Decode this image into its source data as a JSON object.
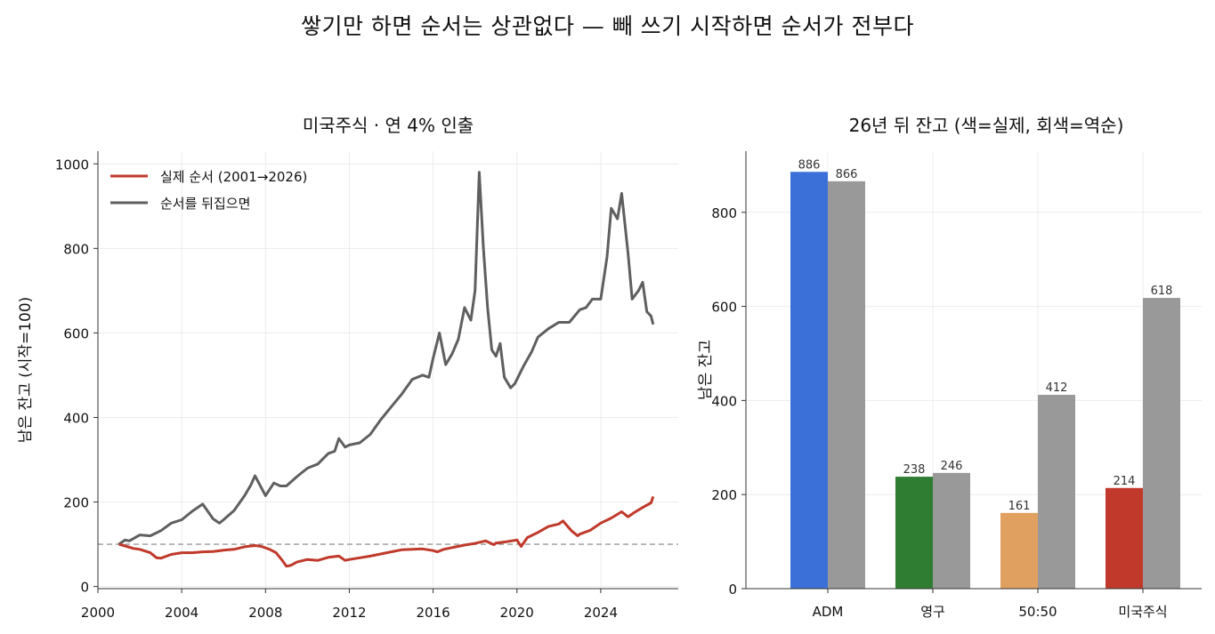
{
  "suptitle": "쌓기만 하면 순서는 상관없다 — 빼 쓰기 시작하면 순서가 전부다",
  "chart_data": [
    {
      "type": "line",
      "title": "미국주식 · 연 4% 인출",
      "xlabel": "",
      "ylabel": "남은 잔고 (시작=100)",
      "xlim": [
        2000,
        2027.7
      ],
      "ylim": [
        -5,
        1030
      ],
      "xticks": [
        "2000",
        "2004",
        "2008",
        "2012",
        "2016",
        "2020",
        "2024"
      ],
      "yticks": [
        "0",
        "200",
        "400",
        "600",
        "800",
        "1000"
      ],
      "reference_line": 100,
      "grid": true,
      "legend_position": "top-left",
      "colors": {
        "actual": "#c0392b",
        "reversed": "#5f5f5f",
        "reference": "#999999"
      },
      "series": [
        {
          "name": "실제 순서 (2001→2026)",
          "x": [
            2001.0,
            2001.3,
            2001.7,
            2002.0,
            2002.5,
            2002.8,
            2003.0,
            2003.5,
            2004.0,
            2004.5,
            2005.0,
            2005.5,
            2006.0,
            2006.5,
            2007.0,
            2007.5,
            2007.8,
            2008.2,
            2008.5,
            2008.8,
            2009.0,
            2009.2,
            2009.5,
            2010.0,
            2010.5,
            2011.0,
            2011.5,
            2011.8,
            2012.0,
            2012.5,
            2013.0,
            2013.5,
            2014.0,
            2014.5,
            2015.0,
            2015.5,
            2016.0,
            2016.2,
            2016.5,
            2017.0,
            2017.5,
            2018.0,
            2018.5,
            2018.9,
            2019.0,
            2019.5,
            2020.0,
            2020.2,
            2020.5,
            2021.0,
            2021.5,
            2022.0,
            2022.2,
            2022.6,
            2022.9,
            2023.0,
            2023.5,
            2024.0,
            2024.5,
            2025.0,
            2025.3,
            2025.6,
            2026.0,
            2026.4,
            2026.5
          ],
          "y": [
            100,
            96,
            90,
            88,
            80,
            68,
            67,
            76,
            80,
            80,
            82,
            83,
            86,
            88,
            94,
            97,
            95,
            88,
            80,
            62,
            48,
            50,
            58,
            64,
            62,
            69,
            72,
            62,
            64,
            68,
            72,
            77,
            82,
            87,
            88,
            89,
            85,
            82,
            88,
            93,
            98,
            102,
            108,
            99,
            103,
            106,
            110,
            95,
            116,
            128,
            142,
            148,
            155,
            132,
            120,
            124,
            133,
            150,
            162,
            177,
            165,
            175,
            187,
            198,
            213
          ]
        },
        {
          "name": "순서를 뒤집으면",
          "x": [
            2001.0,
            2001.3,
            2001.5,
            2002.0,
            2002.5,
            2003.0,
            2003.5,
            2004.0,
            2004.5,
            2005.0,
            2005.5,
            2005.8,
            2006.0,
            2006.5,
            2007.0,
            2007.3,
            2007.5,
            2008.0,
            2008.4,
            2008.7,
            2009.0,
            2009.5,
            2010.0,
            2010.5,
            2011.0,
            2011.3,
            2011.5,
            2011.8,
            2012.0,
            2012.5,
            2013.0,
            2013.5,
            2014.0,
            2014.5,
            2015.0,
            2015.5,
            2015.8,
            2016.0,
            2016.3,
            2016.6,
            2016.9,
            2017.2,
            2017.5,
            2017.8,
            2018.0,
            2018.2,
            2018.4,
            2018.6,
            2018.8,
            2019.0,
            2019.2,
            2019.4,
            2019.7,
            2019.9,
            2020.1,
            2020.3,
            2020.7,
            2021.0,
            2021.5,
            2022.0,
            2022.5,
            2023.0,
            2023.3,
            2023.6,
            2024.0,
            2024.3,
            2024.5,
            2024.8,
            2025.0,
            2025.3,
            2025.5,
            2025.8,
            2026.0,
            2026.2,
            2026.4,
            2026.5
          ],
          "y": [
            100,
            110,
            108,
            122,
            120,
            132,
            150,
            158,
            178,
            195,
            160,
            150,
            158,
            180,
            215,
            240,
            262,
            215,
            245,
            238,
            238,
            260,
            280,
            290,
            315,
            320,
            350,
            330,
            335,
            340,
            360,
            395,
            425,
            455,
            490,
            500,
            495,
            540,
            600,
            525,
            550,
            585,
            660,
            630,
            700,
            980,
            800,
            660,
            560,
            545,
            575,
            495,
            470,
            480,
            500,
            520,
            555,
            590,
            610,
            625,
            625,
            655,
            660,
            680,
            680,
            780,
            895,
            870,
            930,
            790,
            680,
            700,
            720,
            650,
            640,
            620
          ]
        }
      ]
    },
    {
      "type": "bar",
      "title": "26년 뒤 잔고 (색=실제, 회색=역순)",
      "xlabel": "",
      "ylabel": "남은 잔고",
      "categories": [
        "ADM",
        "영구",
        "50:50",
        "미국주식"
      ],
      "ylim": [
        0,
        930
      ],
      "yticks": [
        "0",
        "200",
        "400",
        "600",
        "800"
      ],
      "grid": true,
      "bar_colors": [
        "#3b70d8",
        "#2e7d32",
        "#e0a060",
        "#c0392b"
      ],
      "reverse_color": "#999999",
      "series": [
        {
          "values": [
            886,
            238,
            161,
            214
          ]
        },
        {
          "values": [
            866,
            246,
            412,
            618
          ]
        }
      ],
      "data_labels": [
        [
          "886",
          "238",
          "161",
          "214"
        ],
        [
          "866",
          "246",
          "412",
          "618"
        ]
      ]
    }
  ]
}
